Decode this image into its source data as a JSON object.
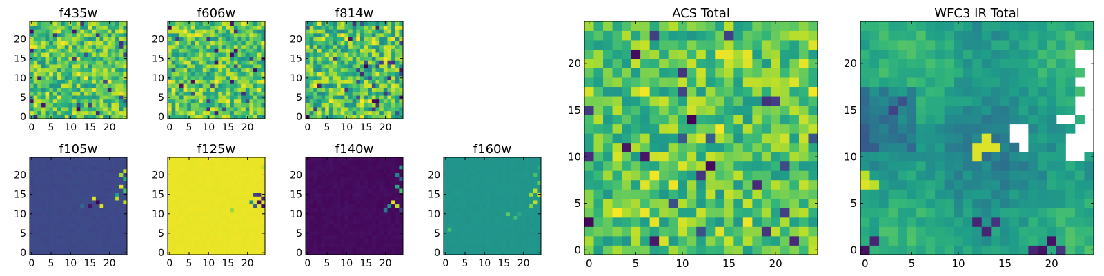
{
  "chart_data": [
    {
      "type": "heatmap",
      "title": "f435w",
      "x_ticks": [
        "0",
        "5",
        "10",
        "15",
        "20"
      ],
      "y_ticks": [
        "0",
        "5",
        "10",
        "15",
        "20"
      ],
      "xlim": [
        -0.5,
        24.5
      ],
      "ylim": [
        -0.5,
        24.5
      ],
      "grid_size": [
        25,
        25
      ],
      "colormap": "viridis",
      "pattern": "noise",
      "dominant_level": 0.72,
      "spread": 0.22
    },
    {
      "type": "heatmap",
      "title": "f606w",
      "x_ticks": [
        "0",
        "5",
        "10",
        "15",
        "20"
      ],
      "y_ticks": [
        "0",
        "5",
        "10",
        "15",
        "20"
      ],
      "xlim": [
        -0.5,
        24.5
      ],
      "ylim": [
        -0.5,
        24.5
      ],
      "grid_size": [
        25,
        25
      ],
      "colormap": "viridis",
      "pattern": "noise",
      "dominant_level": 0.72,
      "spread": 0.22
    },
    {
      "type": "heatmap",
      "title": "f814w",
      "x_ticks": [
        "0",
        "5",
        "10",
        "15",
        "20"
      ],
      "y_ticks": [
        "0",
        "5",
        "10",
        "15",
        "20"
      ],
      "xlim": [
        -0.5,
        24.5
      ],
      "ylim": [
        -0.5,
        24.5
      ],
      "grid_size": [
        25,
        25
      ],
      "colormap": "viridis",
      "pattern": "noise",
      "dominant_level": 0.7,
      "spread": 0.24
    },
    {
      "type": "heatmap",
      "title": "f105w",
      "x_ticks": [
        "0",
        "5",
        "10",
        "15",
        "20"
      ],
      "y_ticks": [
        "0",
        "5",
        "10",
        "15",
        "20"
      ],
      "xlim": [
        -0.5,
        24.5
      ],
      "ylim": [
        -0.5,
        24.5
      ],
      "grid_size": [
        25,
        25
      ],
      "colormap": "viridis",
      "pattern": "flat",
      "dominant_level": 0.22,
      "spread": 0.02,
      "hot_pixels": [
        [
          23,
          20,
          0.85
        ],
        [
          24,
          21,
          0.9
        ],
        [
          24,
          19,
          0.6
        ],
        [
          23,
          17,
          0.95
        ],
        [
          24,
          16,
          0.7
        ],
        [
          22,
          15,
          0.55
        ],
        [
          17,
          13,
          0.0
        ],
        [
          18,
          12,
          0.95
        ],
        [
          16,
          14,
          0.95
        ],
        [
          15,
          12,
          0.05
        ],
        [
          13,
          12,
          0.35
        ],
        [
          24,
          13,
          0.9
        ],
        [
          22,
          14,
          0.9
        ]
      ]
    },
    {
      "type": "heatmap",
      "title": "f125w",
      "x_ticks": [
        "0",
        "5",
        "10",
        "15",
        "20"
      ],
      "y_ticks": [
        "0",
        "5",
        "10",
        "15",
        "20"
      ],
      "xlim": [
        -0.5,
        24.5
      ],
      "ylim": [
        -0.5,
        24.5
      ],
      "grid_size": [
        25,
        25
      ],
      "colormap": "viridis",
      "pattern": "flat",
      "dominant_level": 0.97,
      "spread": 0.01,
      "hot_pixels": [
        [
          22,
          15,
          0.2
        ],
        [
          23,
          13,
          0.05
        ],
        [
          24,
          14,
          0.1
        ],
        [
          23,
          15,
          0.15
        ],
        [
          22,
          12,
          0.3
        ],
        [
          24,
          12,
          0.05
        ],
        [
          16,
          11,
          0.85
        ],
        [
          21,
          13,
          0.5
        ],
        [
          24,
          22,
          0.9
        ]
      ]
    },
    {
      "type": "heatmap",
      "title": "f140w",
      "x_ticks": [
        "0",
        "5",
        "10",
        "15",
        "20"
      ],
      "y_ticks": [
        "0",
        "5",
        "10",
        "15",
        "20"
      ],
      "xlim": [
        -0.5,
        24.5
      ],
      "ylim": [
        -0.5,
        24.5
      ],
      "grid_size": [
        25,
        25
      ],
      "colormap": "viridis",
      "pattern": "flat",
      "dominant_level": 0.03,
      "spread": 0.03,
      "hot_pixels": [
        [
          24,
          22,
          0.55
        ],
        [
          23,
          20,
          0.45
        ],
        [
          24,
          19,
          0.3
        ],
        [
          23,
          17,
          0.6
        ],
        [
          24,
          16,
          0.7
        ],
        [
          22,
          13,
          0.95
        ],
        [
          23,
          12,
          0.9
        ],
        [
          21,
          12,
          0.5
        ],
        [
          20,
          11,
          0.4
        ],
        [
          24,
          11,
          0.2
        ]
      ]
    },
    {
      "type": "heatmap",
      "title": "f160w",
      "x_ticks": [
        "0",
        "5",
        "10",
        "15",
        "20"
      ],
      "y_ticks": [
        "0",
        "5",
        "10",
        "15",
        "20"
      ],
      "xlim": [
        -0.5,
        24.5
      ],
      "ylim": [
        -0.5,
        24.5
      ],
      "grid_size": [
        25,
        25
      ],
      "colormap": "viridis",
      "pattern": "flat",
      "dominant_level": 0.52,
      "spread": 0.02,
      "hot_pixels": [
        [
          24,
          22,
          0.6
        ],
        [
          23,
          20,
          0.7
        ],
        [
          24,
          18,
          0.75
        ],
        [
          24,
          15,
          0.95
        ],
        [
          23,
          16,
          0.9
        ],
        [
          22,
          15,
          0.85
        ],
        [
          23,
          13,
          0.9
        ],
        [
          22,
          12,
          0.8
        ],
        [
          16,
          10,
          0.75
        ],
        [
          18,
          9,
          0.7
        ],
        [
          19,
          10,
          0.6
        ],
        [
          1,
          6,
          0.7
        ]
      ]
    },
    {
      "type": "heatmap",
      "title": "ACS Total",
      "x_ticks": [
        "0",
        "5",
        "10",
        "15",
        "20"
      ],
      "y_ticks": [
        "0",
        "5",
        "10",
        "15",
        "20"
      ],
      "xlim": [
        -0.5,
        24.5
      ],
      "ylim": [
        -0.5,
        24.5
      ],
      "grid_size": [
        25,
        25
      ],
      "colormap": "viridis",
      "pattern": "noise",
      "dominant_level": 0.72,
      "spread": 0.2
    },
    {
      "type": "heatmap",
      "title": "WFC3 IR Total",
      "x_ticks": [
        "0",
        "5",
        "10",
        "15",
        "20"
      ],
      "y_ticks": [
        "0",
        "5",
        "10",
        "15",
        "20"
      ],
      "xlim": [
        -0.5,
        24.5
      ],
      "ylim": [
        -0.5,
        24.5
      ],
      "grid_size": [
        25,
        25
      ],
      "colormap": "viridis",
      "pattern": "smooth",
      "dominant_level": 0.55,
      "spread": 0.15,
      "hot_pixels": [
        [
          12,
          11,
          0.95
        ],
        [
          13,
          11,
          0.95
        ],
        [
          12,
          10,
          0.95
        ],
        [
          13,
          12,
          0.95
        ],
        [
          14,
          11,
          0.95
        ],
        [
          0,
          7,
          0.95
        ],
        [
          1,
          7,
          0.9
        ],
        [
          0,
          8,
          0.9
        ],
        [
          19,
          0,
          0.05
        ],
        [
          20,
          1,
          0.05
        ],
        [
          18,
          0,
          0.1
        ],
        [
          21,
          0,
          0.15
        ],
        [
          12,
          3,
          0.1
        ],
        [
          13,
          2,
          0.1
        ],
        [
          14,
          3,
          0.15
        ],
        [
          0,
          0,
          0.05
        ],
        [
          1,
          1,
          0.1
        ],
        [
          3,
          15,
          0.2
        ],
        [
          4,
          16,
          0.25
        ]
      ],
      "masked_pixels": [
        [
          24,
          21
        ],
        [
          23,
          21
        ],
        [
          24,
          20
        ],
        [
          23,
          20
        ],
        [
          24,
          19
        ],
        [
          24,
          18
        ],
        [
          23,
          18
        ],
        [
          24,
          17
        ],
        [
          24,
          16
        ],
        [
          23,
          16
        ],
        [
          24,
          15
        ],
        [
          23,
          15
        ],
        [
          24,
          14
        ],
        [
          24,
          13
        ],
        [
          23,
          13
        ],
        [
          24,
          12
        ],
        [
          23,
          12
        ],
        [
          22,
          12
        ],
        [
          24,
          11
        ],
        [
          23,
          11
        ],
        [
          16,
          13
        ],
        [
          17,
          13
        ],
        [
          16,
          12
        ],
        [
          17,
          12
        ],
        [
          17,
          11
        ],
        [
          22,
          11
        ],
        [
          22,
          10
        ],
        [
          23,
          10
        ],
        [
          21,
          14
        ],
        [
          22,
          14
        ]
      ]
    }
  ]
}
